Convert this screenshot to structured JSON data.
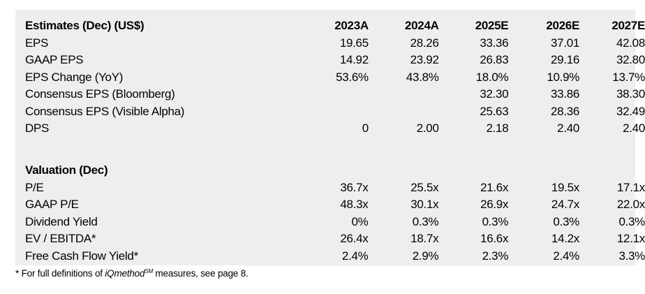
{
  "estimates": {
    "header": [
      "Estimates (Dec) (US$)",
      "2023A",
      "2024A",
      "2025E",
      "2026E",
      "2027E"
    ],
    "rows": [
      [
        "EPS",
        "19.65",
        "28.26",
        "33.36",
        "37.01",
        "42.08"
      ],
      [
        "GAAP EPS",
        "14.92",
        "23.92",
        "26.83",
        "29.16",
        "32.80"
      ],
      [
        "EPS Change (YoY)",
        "53.6%",
        "43.8%",
        "18.0%",
        "10.9%",
        "13.7%"
      ],
      [
        "Consensus EPS (Bloomberg)",
        "",
        "",
        "32.30",
        "33.86",
        "38.30"
      ],
      [
        "Consensus EPS (Visible Alpha)",
        "",
        "",
        "25.63",
        "28.36",
        "32.49"
      ],
      [
        "DPS",
        "0",
        "2.00",
        "2.18",
        "2.40",
        "2.40"
      ]
    ]
  },
  "valuation": {
    "header": [
      "Valuation (Dec)",
      "",
      "",
      "",
      "",
      ""
    ],
    "rows": [
      [
        "P/E",
        "36.7x",
        "25.5x",
        "21.6x",
        "19.5x",
        "17.1x"
      ],
      [
        "GAAP P/E",
        "48.3x",
        "30.1x",
        "26.9x",
        "24.7x",
        "22.0x"
      ],
      [
        "Dividend Yield",
        "0%",
        "0.3%",
        "0.3%",
        "0.3%",
        "0.3%"
      ],
      [
        "EV / EBITDA*",
        "26.4x",
        "18.7x",
        "16.6x",
        "14.2x",
        "12.1x"
      ],
      [
        "Free Cash Flow Yield*",
        "2.4%",
        "2.9%",
        "2.3%",
        "2.4%",
        "3.3%"
      ]
    ]
  },
  "footnote": {
    "prefix": "* For full definitions of ",
    "brand": "iQmethod",
    "sup": "SM",
    "suffix": " measures, see page 8."
  }
}
